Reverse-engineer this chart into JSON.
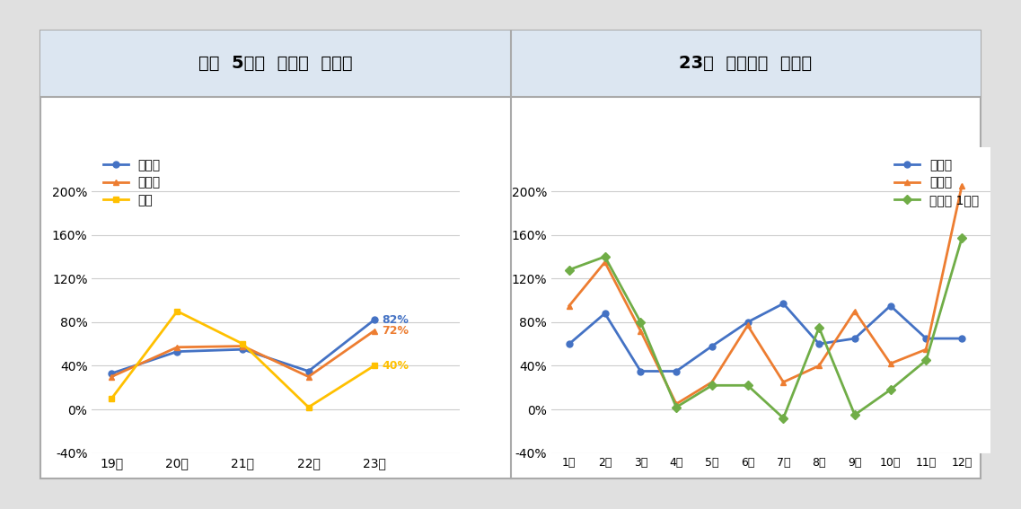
{
  "left_title": "최근  5년간  공모가  수익률",
  "right_title": "23년  상장기업  수익률",
  "left_x": [
    "19년",
    "20년",
    "21년",
    "22년",
    "23년"
  ],
  "left_시초가": [
    33,
    53,
    55,
    35,
    82
  ],
  "left_상장일": [
    30,
    57,
    58,
    30,
    72
  ],
  "left_연말": [
    10,
    90,
    60,
    2,
    40
  ],
  "right_x": [
    "1월",
    "2월",
    "3월",
    "4월",
    "5월",
    "6월",
    "7월",
    "8월",
    "9월",
    "10월",
    "11월",
    "12월"
  ],
  "right_시초가": [
    60,
    88,
    35,
    35,
    58,
    80,
    97,
    60,
    65,
    95,
    65,
    65
  ],
  "right_상장일": [
    95,
    135,
    72,
    5,
    25,
    77,
    25,
    40,
    90,
    42,
    55,
    205
  ],
  "right_상장후1개월": [
    128,
    140,
    80,
    2,
    22,
    22,
    -8,
    75,
    -5,
    18,
    45,
    157
  ],
  "yticks": [
    -40,
    0,
    40,
    80,
    120,
    160,
    200
  ],
  "ytick_labels": [
    "-40%",
    "0%",
    "40%",
    "80%",
    "120%",
    "160%",
    "200%"
  ],
  "color_blue": "#4472c4",
  "color_orange": "#ed7d31",
  "color_yellow": "#ffc000",
  "color_green": "#70ad47",
  "header_bg": "#dce6f1",
  "grid_color": "#cccccc",
  "chart_bg": "#ffffff",
  "outer_bg": "#e0e0e0"
}
